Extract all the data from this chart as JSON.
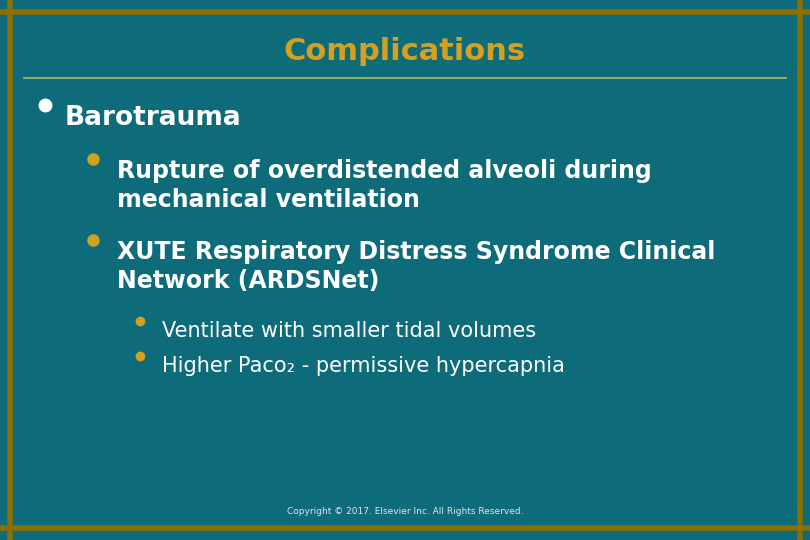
{
  "title": "Complications",
  "title_color": "#D4A020",
  "title_fontsize": 22,
  "bg_color": "#0D6B7A",
  "border_color": "#8B7000",
  "line_color": "#C8C840",
  "text_color": "#FFFFFF",
  "bullet_color_l0": "#FFFFFF",
  "bullet_color_l1": "#D4A020",
  "bullet_color_l2": "#D4A020",
  "copyright": "Copyright © 2017. Elsevier Inc. All Rights Reserved.",
  "items": [
    {
      "level": 0,
      "text": "Barotrauma",
      "bold": true,
      "fontsize": 19
    },
    {
      "level": 1,
      "text": "Rupture of overdistended alveoli during\nmechanical ventilation",
      "bold": true,
      "fontsize": 17
    },
    {
      "level": 1,
      "text": "XUTE Respiratory Distress Syndrome Clinical\nNetwork (ARDSNet)",
      "bold": true,
      "fontsize": 17
    },
    {
      "level": 2,
      "text": "Ventilate with smaller tidal volumes",
      "bold": false,
      "fontsize": 15
    },
    {
      "level": 2,
      "text": "Higher Paco₂ - permissive hypercapnia",
      "bold": false,
      "fontsize": 15
    }
  ],
  "indent_x": {
    "0": 0.08,
    "1": 0.145,
    "2": 0.2
  },
  "bullet_x": {
    "0": 0.055,
    "1": 0.115,
    "2": 0.173
  },
  "bullet_size": {
    "0": 9,
    "1": 8,
    "2": 6
  },
  "line_spacing": {
    "0": 0.09,
    "1": 0.075,
    "2": 0.065
  }
}
